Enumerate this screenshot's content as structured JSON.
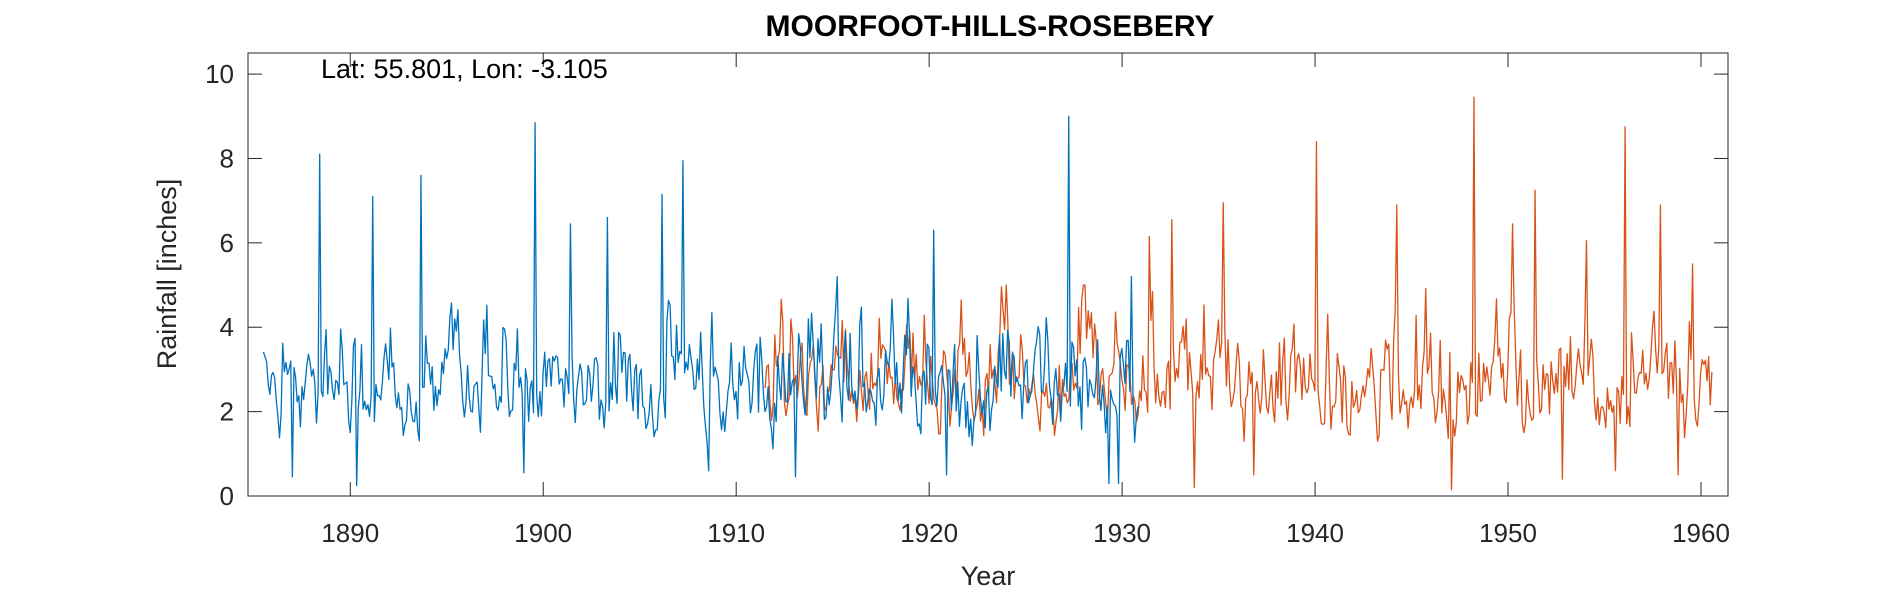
{
  "chart_data": {
    "type": "line",
    "title": "MOORFOOT-HILLS-ROSEBERY",
    "annotation": "Lat: 55.801, Lon: -3.105",
    "xlabel": "Year",
    "ylabel": "Rainfall [inches]",
    "xlim": [
      1884.7,
      1961.4
    ],
    "ylim": [
      0,
      10.5
    ],
    "xticks": [
      1890,
      1900,
      1910,
      1920,
      1930,
      1940,
      1950,
      1960
    ],
    "yticks": [
      0,
      2,
      4,
      6,
      8,
      10
    ],
    "grid": false,
    "colors": {
      "series_a": "#0072BD",
      "series_b": "#D95319",
      "axis": "#262626"
    },
    "series": [
      {
        "x_start": 1885.5,
        "x_end": 1930.9,
        "step": 0.0833,
        "peaks": [
          [
            1888.4,
            8.1
          ],
          [
            1891.2,
            7.1
          ],
          [
            1893.7,
            7.6
          ],
          [
            1899.6,
            8.85
          ],
          [
            1901.4,
            6.45
          ],
          [
            1903.3,
            6.6
          ],
          [
            1906.2,
            7.15
          ],
          [
            1907.2,
            7.95
          ],
          [
            1915.2,
            5.2
          ],
          [
            1920.2,
            6.3
          ],
          [
            1927.2,
            9.0
          ],
          [
            1930.5,
            5.2
          ]
        ],
        "lows": [
          [
            1887.0,
            0.45
          ],
          [
            1890.3,
            0.25
          ],
          [
            1899.0,
            0.55
          ],
          [
            1908.6,
            0.6
          ],
          [
            1913.1,
            0.45
          ],
          [
            1920.9,
            0.5
          ],
          [
            1929.3,
            0.3
          ],
          [
            1929.8,
            0.3
          ]
        ]
      },
      {
        "x_start": 1911.5,
        "x_end": 1960.6,
        "step": 0.0833,
        "peaks": [
          [
            1931.4,
            6.15
          ],
          [
            1932.6,
            6.55
          ],
          [
            1935.2,
            6.95
          ],
          [
            1940.1,
            8.4
          ],
          [
            1944.2,
            6.9
          ],
          [
            1948.2,
            9.45
          ],
          [
            1950.2,
            6.45
          ],
          [
            1951.4,
            7.25
          ],
          [
            1954.1,
            6.05
          ],
          [
            1956.1,
            8.75
          ],
          [
            1957.9,
            6.9
          ],
          [
            1959.6,
            5.5
          ]
        ],
        "lows": [
          [
            1933.7,
            0.2
          ],
          [
            1936.8,
            0.5
          ],
          [
            1947.1,
            0.15
          ],
          [
            1952.8,
            0.4
          ],
          [
            1955.6,
            0.6
          ],
          [
            1958.8,
            0.5
          ]
        ]
      }
    ]
  }
}
